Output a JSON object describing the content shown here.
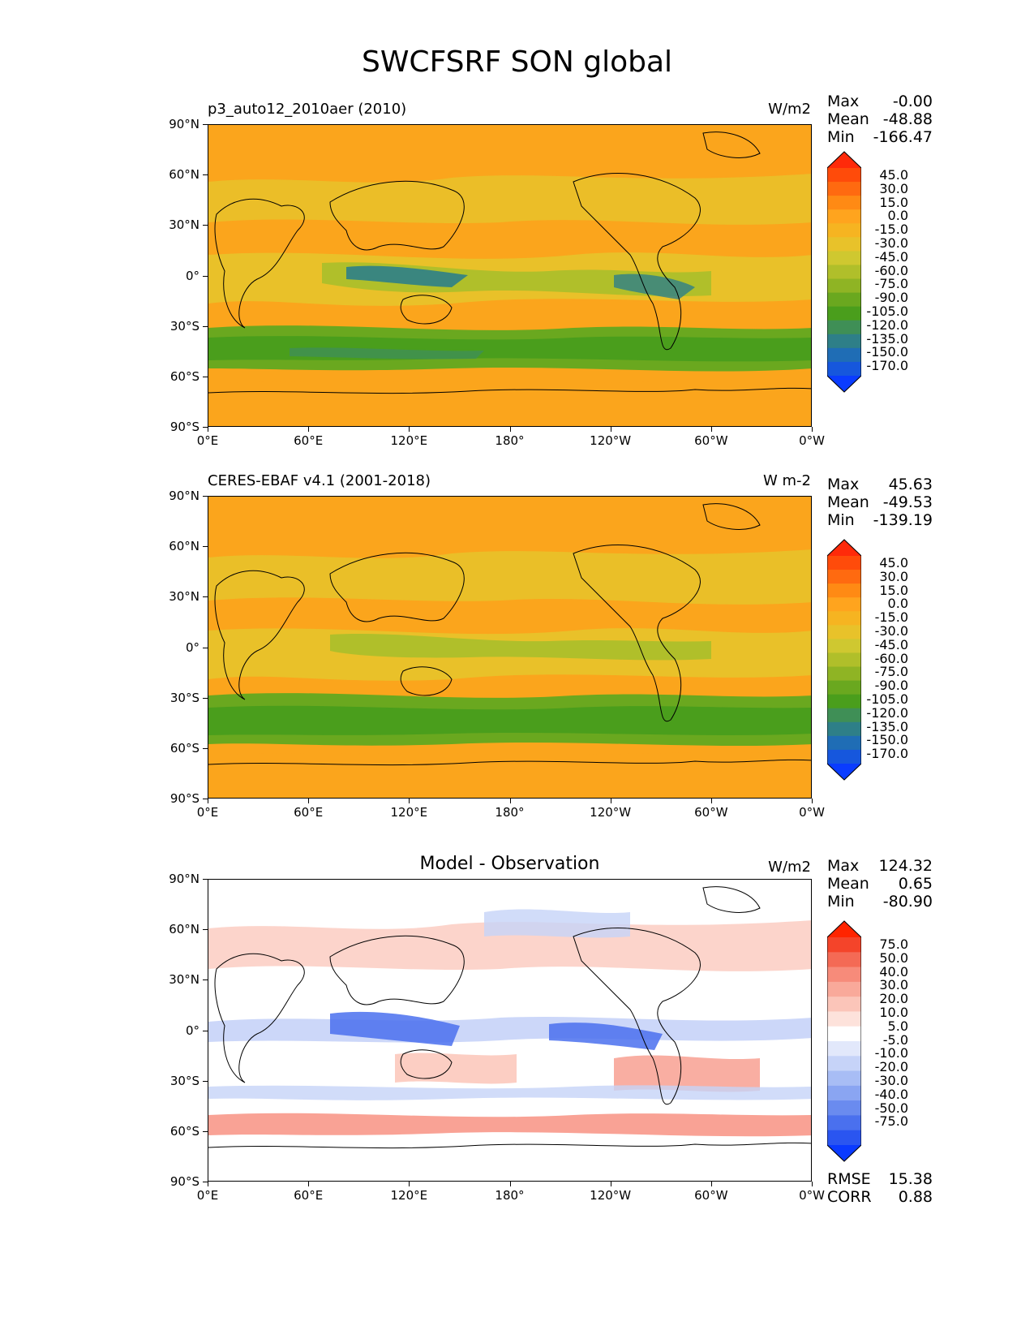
{
  "title": "SWCFSRF SON global",
  "lat_ticks": [
    "90°N",
    "60°N",
    "30°N",
    "0°",
    "30°S",
    "60°S",
    "90°S"
  ],
  "lon_ticks": [
    "0°E",
    "60°E",
    "120°E",
    "180°",
    "120°W",
    "60°W",
    "0°W"
  ],
  "panels": [
    {
      "label": "p3_auto12_2010aer (2010)",
      "units": "W/m2",
      "centered_title": "",
      "stats": [
        {
          "name": "Max",
          "value": "-0.00"
        },
        {
          "name": "Mean",
          "value": "-48.88"
        },
        {
          "name": "Min",
          "value": "-166.47"
        }
      ],
      "extra_stats": []
    },
    {
      "label": "CERES-EBAF v4.1 (2001-2018)",
      "units": "W m-2",
      "centered_title": "",
      "stats": [
        {
          "name": "Max",
          "value": "45.63"
        },
        {
          "name": "Mean",
          "value": "-49.53"
        },
        {
          "name": "Min",
          "value": "-139.19"
        }
      ],
      "extra_stats": []
    },
    {
      "label": "",
      "units": "W/m2",
      "centered_title": "Model - Observation",
      "stats": [
        {
          "name": "Max",
          "value": "124.32"
        },
        {
          "name": "Mean",
          "value": "0.65"
        },
        {
          "name": "Min",
          "value": "-80.90"
        }
      ],
      "extra_stats": [
        {
          "name": "RMSE",
          "value": "15.38"
        },
        {
          "name": "CORR",
          "value": "0.88"
        }
      ]
    }
  ],
  "colorbars": [
    {
      "labels": [
        "45.0",
        "30.0",
        "15.0",
        "0.0",
        "-15.0",
        "-30.0",
        "-45.0",
        "-60.0",
        "-75.0",
        "-90.0",
        "-105.0",
        "-120.0",
        "-135.0",
        "-150.0",
        "-170.0"
      ],
      "colors": [
        "#ff2a0a",
        "#ff4b0a",
        "#ff6a10",
        "#ff8a14",
        "#ffa41e",
        "#f6b421",
        "#e8c22a",
        "#cfc830",
        "#b0bf2a",
        "#8fb424",
        "#6aa81f",
        "#4a9e1c",
        "#3f8f56",
        "#2e7f88",
        "#1f6db5",
        "#1657dd",
        "#0a3cff"
      ]
    },
    {
      "labels": [
        "45.0",
        "30.0",
        "15.0",
        "0.0",
        "-15.0",
        "-30.0",
        "-45.0",
        "-60.0",
        "-75.0",
        "-90.0",
        "-105.0",
        "-120.0",
        "-135.0",
        "-150.0",
        "-170.0"
      ],
      "colors": [
        "#ff2a0a",
        "#ff4b0a",
        "#ff6a10",
        "#ff8a14",
        "#ffa41e",
        "#f6b421",
        "#e8c22a",
        "#cfc830",
        "#b0bf2a",
        "#8fb424",
        "#6aa81f",
        "#4a9e1c",
        "#3f8f56",
        "#2e7f88",
        "#1f6db5",
        "#1657dd",
        "#0a3cff"
      ]
    },
    {
      "labels": [
        "75.0",
        "50.0",
        "40.0",
        "30.0",
        "20.0",
        "10.0",
        "5.0",
        "-5.0",
        "-10.0",
        "-20.0",
        "-30.0",
        "-40.0",
        "-50.0",
        "-75.0"
      ],
      "colors": [
        "#ff2400",
        "#f4442a",
        "#f46a55",
        "#f78b7a",
        "#f9a99a",
        "#fbc5b9",
        "#fde2db",
        "#ffffff",
        "#e2e8fb",
        "#c6d3f8",
        "#a8bdf5",
        "#8aa5f2",
        "#6a8bef",
        "#4a70ee",
        "#2a55f0",
        "#0a3aff"
      ]
    }
  ],
  "map_colors": {
    "panel1": {
      "base": "#fba51c",
      "mid": "#e8c22a",
      "green": "#b0bf2a",
      "deep": "#6aa81f",
      "storm": "#4a9e1c",
      "blue": "#2e7f88"
    },
    "panel2": {
      "base": "#fba51c",
      "mid": "#e8c22a",
      "green": "#b0bf2a",
      "deep": "#6aa81f",
      "storm": "#4a9e1c"
    },
    "panel3": {
      "base": "#ffffff",
      "pink": "#fbc5b9",
      "red": "#f78b7a",
      "lightblue": "#c6d3f8",
      "blue": "#4a70ee"
    }
  }
}
